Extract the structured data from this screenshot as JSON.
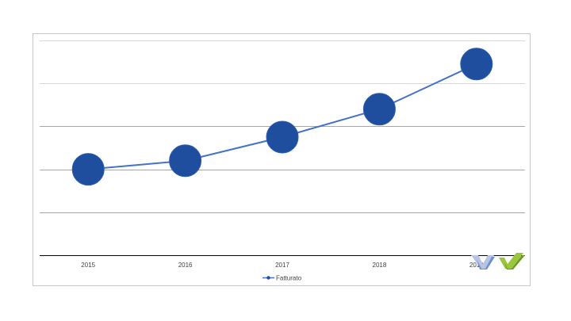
{
  "chart_data": {
    "type": "line",
    "categories": [
      "2015",
      "2016",
      "2017",
      "2018",
      "2019"
    ],
    "series": [
      {
        "name": "Fatturato",
        "values": [
          2.0,
          2.2,
          2.75,
          3.4,
          4.45
        ]
      }
    ],
    "title": "",
    "xlabel": "",
    "ylabel": "",
    "ylim": [
      0,
      5
    ],
    "grid": true,
    "legend": "bottom",
    "y_tick_labels_visible": false,
    "colors": {
      "line": "#4472C4",
      "marker": "#1F4E9E",
      "gridline": "#d9d9d9",
      "axis": "#000000"
    }
  },
  "logo": {
    "name": "wv-logo",
    "colors": [
      "#b9c3e3",
      "#6e8fd1",
      "#9bc53d",
      "#6a9a1f"
    ]
  }
}
